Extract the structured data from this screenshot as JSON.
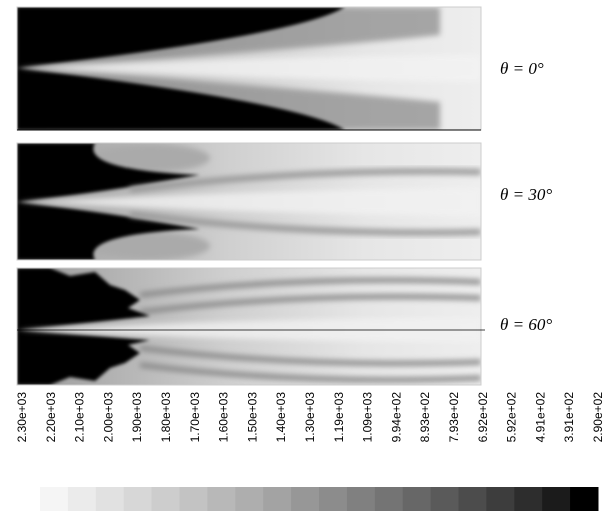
{
  "panels": [
    {
      "label": "θ = 0°"
    },
    {
      "label": "θ = 30°"
    },
    {
      "label": "θ = 60°"
    }
  ],
  "colorbar": {
    "labels": [
      "2.30e+03",
      "2.20e+03",
      "2.10e+03",
      "2.00e+03",
      "1.90e+03",
      "1.80e+03",
      "1.70e+03",
      "1.60e+03",
      "1.50e+03",
      "1.40e+03",
      "1.30e+03",
      "1.19e+03",
      "1.09e+03",
      "9.94e+02",
      "8.93e+02",
      "7.93e+02",
      "6.92e+02",
      "5.92e+02",
      "4.91e+02",
      "3.91e+02",
      "2.90e+02"
    ]
  }
}
